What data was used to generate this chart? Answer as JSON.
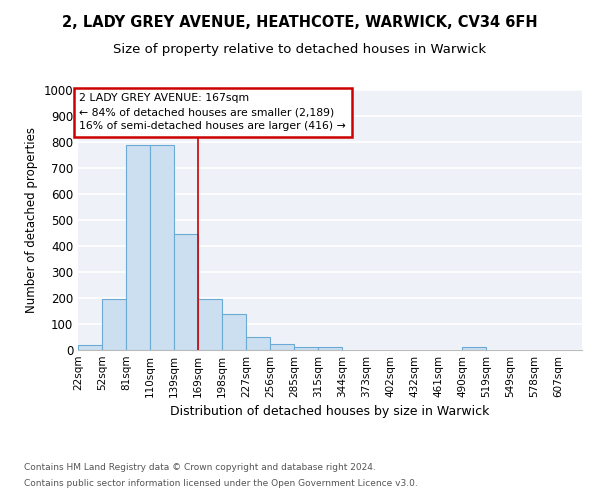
{
  "title_line1": "2, LADY GREY AVENUE, HEATHCOTE, WARWICK, CV34 6FH",
  "title_line2": "Size of property relative to detached houses in Warwick",
  "xlabel": "Distribution of detached houses by size in Warwick",
  "ylabel": "Number of detached properties",
  "bin_labels": [
    "22sqm",
    "52sqm",
    "81sqm",
    "110sqm",
    "139sqm",
    "169sqm",
    "198sqm",
    "227sqm",
    "256sqm",
    "285sqm",
    "315sqm",
    "344sqm",
    "373sqm",
    "402sqm",
    "432sqm",
    "461sqm",
    "490sqm",
    "519sqm",
    "549sqm",
    "578sqm",
    "607sqm"
  ],
  "bar_heights": [
    18,
    196,
    790,
    790,
    447,
    197,
    140,
    50,
    22,
    12,
    10,
    0,
    0,
    0,
    0,
    0,
    10,
    0,
    0,
    0,
    0
  ],
  "bar_color": "#ccdff0",
  "bar_edge_color": "#6aaad4",
  "highlight_bar_index": 5,
  "annotation_text_line1": "2 LADY GREY AVENUE: 167sqm",
  "annotation_text_line2": "← 84% of detached houses are smaller (2,189)",
  "annotation_text_line3": "16% of semi-detached houses are larger (416) →",
  "annotation_box_facecolor": "#ffffff",
  "annotation_box_edgecolor": "#cc0000",
  "highlight_line_color": "#cc0000",
  "ylim": [
    0,
    1000
  ],
  "yticks": [
    0,
    100,
    200,
    300,
    400,
    500,
    600,
    700,
    800,
    900,
    1000
  ],
  "bg_color": "#eef2f8",
  "grid_color": "#ffffff",
  "footer_line1": "Contains HM Land Registry data © Crown copyright and database right 2024.",
  "footer_line2": "Contains public sector information licensed under the Open Government Licence v3.0."
}
